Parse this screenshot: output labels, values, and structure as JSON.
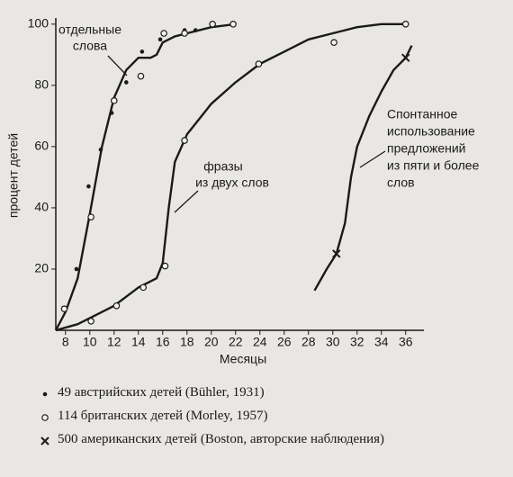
{
  "chart_data": {
    "type": "scatter",
    "y_label": "процент детей",
    "x_label": "Месяцы",
    "xlim": [
      7.2,
      37.5
    ],
    "ylim": [
      0,
      102
    ],
    "xticks": [
      8,
      10,
      12,
      14,
      16,
      18,
      20,
      22,
      24,
      26,
      28,
      30,
      32,
      34,
      36
    ],
    "yticks": [
      20,
      40,
      60,
      80,
      100
    ],
    "grid": false,
    "series": [
      {
        "name": "49 австрийских детей (Bühler, 1931)",
        "marker": "dot",
        "color": "#1a1a1a",
        "x": [
          8.9,
          9.9,
          10.9,
          11.8,
          13,
          14.3,
          15.8,
          17.8,
          18.7,
          20
        ],
        "values": [
          20,
          47,
          59,
          71,
          81,
          91,
          95,
          98,
          98,
          100
        ]
      },
      {
        "name": "114 британских детей (Morley, 1957)",
        "marker": "circle",
        "color": "#1a1a1a",
        "x": [
          7.9,
          10.1,
          12,
          14.2,
          16.1,
          17.8,
          20.1,
          21.8,
          10.1,
          12.2,
          14.4,
          16.2,
          17.8,
          23.9,
          30.1,
          36
        ],
        "values": [
          7,
          37,
          75,
          83,
          97,
          97,
          100,
          100,
          3,
          8,
          14,
          21,
          62,
          87,
          94,
          100
        ]
      },
      {
        "name": "500 американских детей (Boston, авторские наблюдения)",
        "marker": "cross",
        "color": "#1a1a1a",
        "x": [
          30.3,
          36
        ],
        "values": [
          25,
          89
        ]
      }
    ],
    "curves": [
      {
        "label": [
          "отдельные",
          "слова"
        ],
        "x": [
          7.2,
          8,
          9,
          10,
          11,
          12,
          13,
          14,
          15,
          15.5,
          16,
          17,
          18,
          20,
          22
        ],
        "values": [
          0,
          6,
          17,
          38,
          60,
          76,
          85,
          89,
          89,
          90,
          94,
          96,
          97,
          99,
          100
        ]
      },
      {
        "label": [
          "фразы",
          "из двух слов"
        ],
        "x": [
          7.2,
          9,
          10,
          12,
          14,
          15.5,
          16,
          16.5,
          17,
          18,
          20,
          22,
          24,
          26,
          28,
          30,
          32,
          34,
          36
        ],
        "values": [
          0,
          2,
          4,
          8,
          14,
          17,
          22,
          40,
          55,
          64,
          74,
          81,
          87,
          91,
          95,
          97,
          99,
          100,
          100
        ]
      },
      {
        "label": [
          "Спонтанное",
          "использование",
          "предложений",
          "из пяти и более",
          "слов"
        ],
        "x": [
          28.5,
          29.5,
          30.3,
          31,
          31.5,
          32,
          33,
          34,
          35,
          36,
          36.5
        ],
        "values": [
          13,
          20,
          25,
          35,
          50,
          60,
          70,
          78,
          85,
          89,
          93
        ]
      }
    ]
  }
}
